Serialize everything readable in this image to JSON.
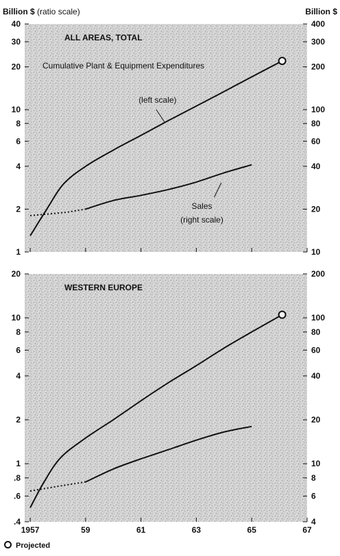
{
  "header": {
    "left_unit": "Billion $",
    "left_note": "(ratio scale)",
    "right_unit": "Billion $"
  },
  "legend": {
    "projected_label": "Projected"
  },
  "x_ticks": [
    "1957",
    "59",
    "61",
    "63",
    "65",
    "67"
  ],
  "chart_data": [
    {
      "type": "line",
      "title": "ALL AREAS, TOTAL",
      "yscale": "log",
      "ylim_left": [
        1,
        40
      ],
      "ylim_right": [
        10,
        400
      ],
      "y_ticks_left": [
        {
          "v": 1,
          "label": "1"
        },
        {
          "v": 2,
          "label": "2"
        },
        {
          "v": 4,
          "label": "4"
        },
        {
          "v": 6,
          "label": "6"
        },
        {
          "v": 8,
          "label": "8"
        },
        {
          "v": 10,
          "label": "10"
        },
        {
          "v": 20,
          "label": "20"
        },
        {
          "v": 30,
          "label": "30"
        },
        {
          "v": 40,
          "label": "40"
        }
      ],
      "y_ticks_right": [
        {
          "v": 10,
          "label": "10"
        },
        {
          "v": 20,
          "label": "20"
        },
        {
          "v": 40,
          "label": "40"
        },
        {
          "v": 60,
          "label": "60"
        },
        {
          "v": 80,
          "label": "80"
        },
        {
          "v": 100,
          "label": "100"
        },
        {
          "v": 200,
          "label": "200"
        },
        {
          "v": 300,
          "label": "300"
        },
        {
          "v": 400,
          "label": "400"
        }
      ],
      "annotations": {
        "subtitle": "Cumulative Plant & Equipment Expenditures",
        "left_scale": "(left scale)",
        "sales": "Sales",
        "right_scale": "(right scale)"
      },
      "series": [
        {
          "axis": "left",
          "points": [
            [
              1957.0,
              1.3
            ],
            [
              1957.6,
              2.0
            ],
            [
              1958.2,
              3.0
            ],
            [
              1959.0,
              4.0
            ],
            [
              1960.0,
              5.2
            ],
            [
              1961.0,
              6.6
            ],
            [
              1962.0,
              8.4
            ],
            [
              1963.0,
              10.6
            ],
            [
              1964.0,
              13.4
            ],
            [
              1965.0,
              17.0
            ],
            [
              1966.1,
              22.0
            ]
          ],
          "projected_marker": [
            1966.1,
            22.0
          ]
        },
        {
          "axis": "right",
          "dotted_segment": [
            [
              1957.0,
              18.0
            ],
            [
              1958.3,
              19.0
            ],
            [
              1959.0,
              20.0
            ]
          ],
          "points": [
            [
              1959.0,
              20.0
            ],
            [
              1960.0,
              23.0
            ],
            [
              1961.0,
              25.0
            ],
            [
              1962.0,
              27.5
            ],
            [
              1963.0,
              31.0
            ],
            [
              1964.0,
              36.0
            ],
            [
              1965.0,
              41.0
            ]
          ]
        }
      ]
    },
    {
      "type": "line",
      "title": "WESTERN EUROPE",
      "yscale": "log",
      "ylim_left": [
        0.4,
        20
      ],
      "ylim_right": [
        4,
        200
      ],
      "y_ticks_left": [
        {
          "v": 0.4,
          "label": ".4"
        },
        {
          "v": 0.6,
          "label": ".6"
        },
        {
          "v": 0.8,
          "label": ".8"
        },
        {
          "v": 1,
          "label": "1"
        },
        {
          "v": 2,
          "label": "2"
        },
        {
          "v": 4,
          "label": "4"
        },
        {
          "v": 6,
          "label": "6"
        },
        {
          "v": 8,
          "label": "8"
        },
        {
          "v": 10,
          "label": "10"
        },
        {
          "v": 20,
          "label": "20"
        }
      ],
      "y_ticks_right": [
        {
          "v": 4,
          "label": "4"
        },
        {
          "v": 6,
          "label": "6"
        },
        {
          "v": 8,
          "label": "8"
        },
        {
          "v": 10,
          "label": "10"
        },
        {
          "v": 20,
          "label": "20"
        },
        {
          "v": 40,
          "label": "40"
        },
        {
          "v": 60,
          "label": "60"
        },
        {
          "v": 80,
          "label": "80"
        },
        {
          "v": 100,
          "label": "100"
        },
        {
          "v": 200,
          "label": "200"
        }
      ],
      "series": [
        {
          "axis": "left",
          "points": [
            [
              1957.0,
              0.5
            ],
            [
              1957.5,
              0.75
            ],
            [
              1958.1,
              1.1
            ],
            [
              1959.0,
              1.5
            ],
            [
              1960.0,
              2.0
            ],
            [
              1961.0,
              2.7
            ],
            [
              1962.0,
              3.6
            ],
            [
              1963.0,
              4.7
            ],
            [
              1964.0,
              6.2
            ],
            [
              1965.0,
              8.0
            ],
            [
              1966.1,
              10.5
            ]
          ],
          "projected_marker": [
            1966.1,
            10.5
          ]
        },
        {
          "axis": "right",
          "dotted_segment": [
            [
              1957.0,
              6.5
            ],
            [
              1958.0,
              7.0
            ],
            [
              1959.0,
              7.5
            ]
          ],
          "points": [
            [
              1959.0,
              7.5
            ],
            [
              1960.0,
              9.2
            ],
            [
              1961.0,
              10.8
            ],
            [
              1962.0,
              12.5
            ],
            [
              1963.0,
              14.5
            ],
            [
              1964.0,
              16.5
            ],
            [
              1965.0,
              18.0
            ]
          ]
        }
      ]
    }
  ]
}
